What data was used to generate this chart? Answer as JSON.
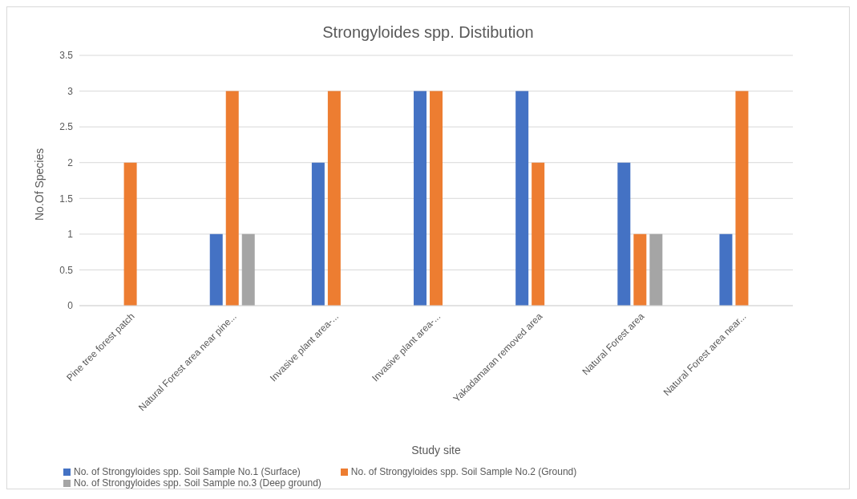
{
  "chart_data": {
    "type": "bar",
    "title": "Strongyloides spp. Distibution",
    "xlabel": "Study site",
    "ylabel": "No.Of Species",
    "categories": [
      "Pine tree forest patch",
      "Natural Forest area near pine...",
      "Invasive plant area-...",
      "Invasive plant area-...",
      "Yakadamaran removed area",
      "Natural Forest area",
      "Natural Forest area near..."
    ],
    "series": [
      {
        "name": "No. of Strongyloides spp. Soil Sample No.1 (Surface)",
        "color": "#4472c4",
        "values": [
          0,
          1,
          2,
          3,
          3,
          2,
          1
        ]
      },
      {
        "name": "No. of Strongyloides spp. Soil Sample No.2 (Ground)",
        "color": "#ed7d31",
        "values": [
          2,
          3,
          3,
          3,
          2,
          1,
          3
        ]
      },
      {
        "name": "No. of Strongyloides spp. Soil Sample no.3 (Deep ground)",
        "color": "#a5a5a5",
        "values": [
          0,
          1,
          0,
          0,
          0,
          1,
          0
        ]
      }
    ],
    "ylim": [
      0,
      3.5
    ],
    "yticks": [
      0,
      0.5,
      1,
      1.5,
      2,
      2.5,
      3,
      3.5
    ],
    "grid": "y",
    "legend": "bottom"
  }
}
